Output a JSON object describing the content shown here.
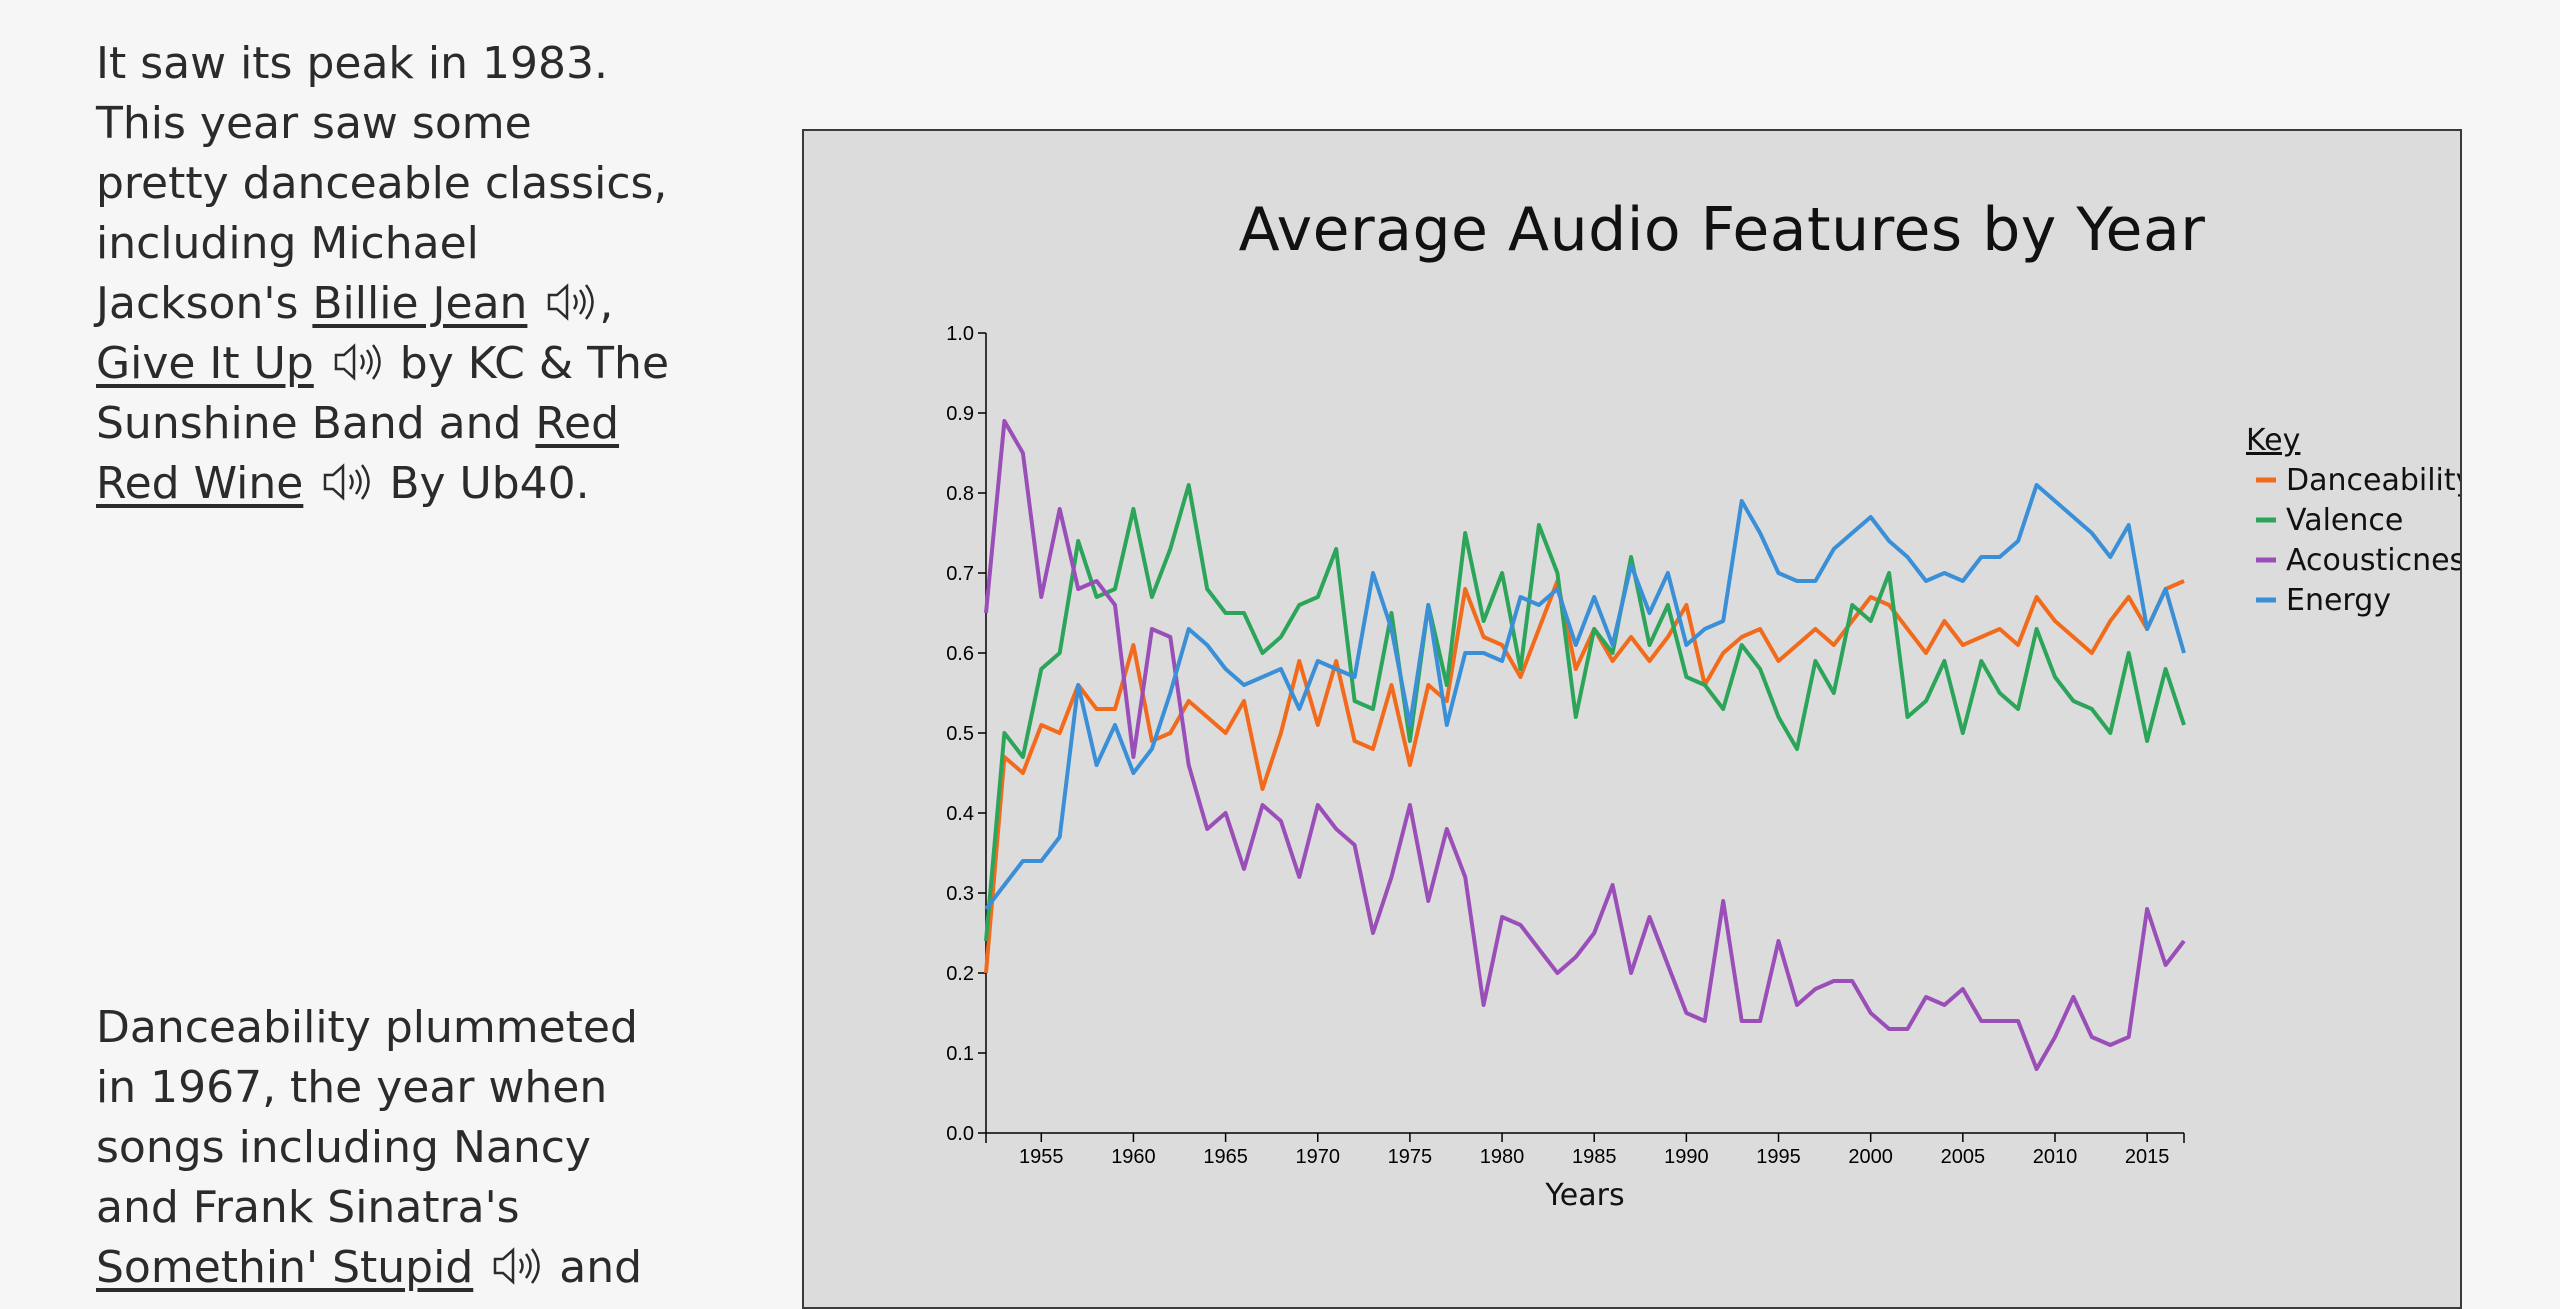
{
  "story": {
    "block1": {
      "line_intro": "It saw its peak in 1983. This year saw some pretty danceable classics, including Michael Jackson's",
      "song1": "Billie Jean",
      "sep1": ",",
      "song2": "Give It Up",
      "by2": "by KC & The Sunshine Band and",
      "song3": "Red Red Wine",
      "by3": "By Ub40."
    },
    "block2": {
      "text": "Danceability plummeted in 1967, the year when songs including Nancy and Frank Sinatra's",
      "song1": "Somethin' Stupid",
      "tail": "and"
    }
  },
  "chart_data": {
    "type": "line",
    "title": "Average Audio Features by Year",
    "xlabel": "Years",
    "ylabel": "",
    "xlim": [
      1952,
      2017
    ],
    "ylim": [
      0,
      1.0
    ],
    "x_ticks": [
      1955,
      1960,
      1965,
      1970,
      1975,
      1980,
      1985,
      1990,
      1995,
      2000,
      2005,
      2010,
      2015
    ],
    "y_ticks": [
      0.0,
      0.1,
      0.2,
      0.3,
      0.4,
      0.5,
      0.6,
      0.7,
      0.8,
      0.9,
      1.0
    ],
    "legend_title": "Key",
    "legend_position": "right",
    "x": [
      1952,
      1953,
      1954,
      1955,
      1956,
      1957,
      1958,
      1959,
      1960,
      1961,
      1962,
      1963,
      1964,
      1965,
      1966,
      1967,
      1968,
      1969,
      1970,
      1971,
      1972,
      1973,
      1974,
      1975,
      1976,
      1977,
      1978,
      1979,
      1980,
      1981,
      1982,
      1983,
      1984,
      1985,
      1986,
      1987,
      1988,
      1989,
      1990,
      1991,
      1992,
      1993,
      1994,
      1995,
      1996,
      1997,
      1998,
      1999,
      2000,
      2001,
      2002,
      2003,
      2004,
      2005,
      2006,
      2007,
      2008,
      2009,
      2010,
      2011,
      2012,
      2013,
      2014,
      2015,
      2016,
      2017
    ],
    "series": [
      {
        "name": "Danceability",
        "color": "#f26b1d",
        "values": [
          0.2,
          0.47,
          0.45,
          0.51,
          0.5,
          0.56,
          0.53,
          0.53,
          0.61,
          0.49,
          0.5,
          0.54,
          0.52,
          0.5,
          0.54,
          0.43,
          0.5,
          0.59,
          0.51,
          0.59,
          0.49,
          0.48,
          0.56,
          0.46,
          0.56,
          0.54,
          0.68,
          0.62,
          0.61,
          0.57,
          0.63,
          0.69,
          0.58,
          0.63,
          0.59,
          0.62,
          0.59,
          0.62,
          0.66,
          0.56,
          0.6,
          0.62,
          0.63,
          0.59,
          0.61,
          0.63,
          0.61,
          0.64,
          0.67,
          0.66,
          0.63,
          0.6,
          0.64,
          0.61,
          0.62,
          0.63,
          0.61,
          0.67,
          0.64,
          0.62,
          0.6,
          0.64,
          0.67,
          0.63,
          0.68,
          0.69
        ]
      },
      {
        "name": "Valence",
        "color": "#2ca55a",
        "values": [
          0.24,
          0.5,
          0.47,
          0.58,
          0.6,
          0.74,
          0.67,
          0.68,
          0.78,
          0.67,
          0.73,
          0.81,
          0.68,
          0.65,
          0.65,
          0.6,
          0.62,
          0.66,
          0.67,
          0.73,
          0.54,
          0.53,
          0.65,
          0.49,
          0.66,
          0.56,
          0.75,
          0.64,
          0.7,
          0.58,
          0.76,
          0.7,
          0.52,
          0.63,
          0.6,
          0.72,
          0.61,
          0.66,
          0.57,
          0.56,
          0.53,
          0.61,
          0.58,
          0.52,
          0.48,
          0.59,
          0.55,
          0.66,
          0.64,
          0.7,
          0.52,
          0.54,
          0.59,
          0.5,
          0.59,
          0.55,
          0.53,
          0.63,
          0.57,
          0.54,
          0.53,
          0.5,
          0.6,
          0.49,
          0.58,
          0.51
        ]
      },
      {
        "name": "Acousticness",
        "color": "#9a4fb8",
        "values": [
          0.65,
          0.89,
          0.85,
          0.67,
          0.78,
          0.68,
          0.69,
          0.66,
          0.47,
          0.63,
          0.62,
          0.46,
          0.38,
          0.4,
          0.33,
          0.41,
          0.39,
          0.32,
          0.41,
          0.38,
          0.36,
          0.25,
          0.32,
          0.41,
          0.29,
          0.38,
          0.32,
          0.16,
          0.27,
          0.26,
          0.23,
          0.2,
          0.22,
          0.25,
          0.31,
          0.2,
          0.27,
          0.21,
          0.15,
          0.14,
          0.29,
          0.14,
          0.14,
          0.24,
          0.16,
          0.18,
          0.19,
          0.19,
          0.15,
          0.13,
          0.13,
          0.17,
          0.16,
          0.18,
          0.14,
          0.14,
          0.14,
          0.08,
          0.12,
          0.17,
          0.12,
          0.11,
          0.12,
          0.28,
          0.21,
          0.24
        ]
      },
      {
        "name": "Energy",
        "color": "#3a8fd6",
        "values": [
          0.28,
          0.31,
          0.34,
          0.34,
          0.37,
          0.56,
          0.46,
          0.51,
          0.45,
          0.48,
          0.55,
          0.63,
          0.61,
          0.58,
          0.56,
          0.57,
          0.58,
          0.53,
          0.59,
          0.58,
          0.57,
          0.7,
          0.63,
          0.51,
          0.66,
          0.51,
          0.6,
          0.6,
          0.59,
          0.67,
          0.66,
          0.68,
          0.61,
          0.67,
          0.61,
          0.71,
          0.65,
          0.7,
          0.61,
          0.63,
          0.64,
          0.79,
          0.75,
          0.7,
          0.69,
          0.69,
          0.73,
          0.75,
          0.77,
          0.74,
          0.72,
          0.69,
          0.7,
          0.69,
          0.72,
          0.72,
          0.74,
          0.81,
          0.79,
          0.77,
          0.75,
          0.72,
          0.76,
          0.63,
          0.68,
          0.6
        ]
      }
    ]
  }
}
